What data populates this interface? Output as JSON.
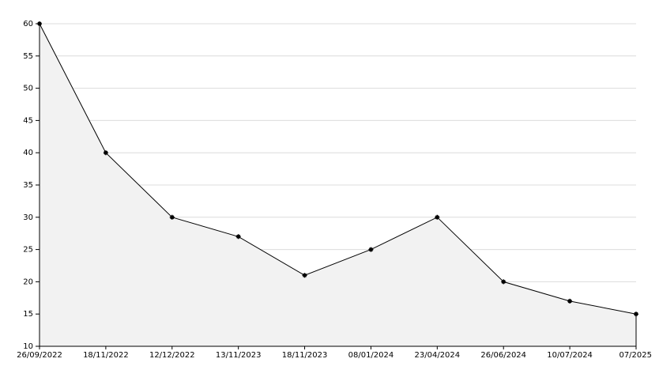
{
  "chart_data": {
    "type": "area",
    "categories": [
      "26/09/2022",
      "18/11/2022",
      "12/12/2022",
      "13/11/2023",
      "18/11/2023",
      "08/01/2024",
      "23/04/2024",
      "26/06/2024",
      "10/07/2024",
      "07/2025"
    ],
    "values": [
      60,
      40,
      30,
      27,
      21,
      25,
      30,
      20,
      17,
      15
    ],
    "color": "#000000",
    "fill_color": "#f2f2f2",
    "ylim": [
      10,
      60
    ],
    "yticks": [
      10,
      15,
      20,
      25,
      30,
      35,
      40,
      45,
      50,
      55,
      60
    ],
    "grid": true
  }
}
